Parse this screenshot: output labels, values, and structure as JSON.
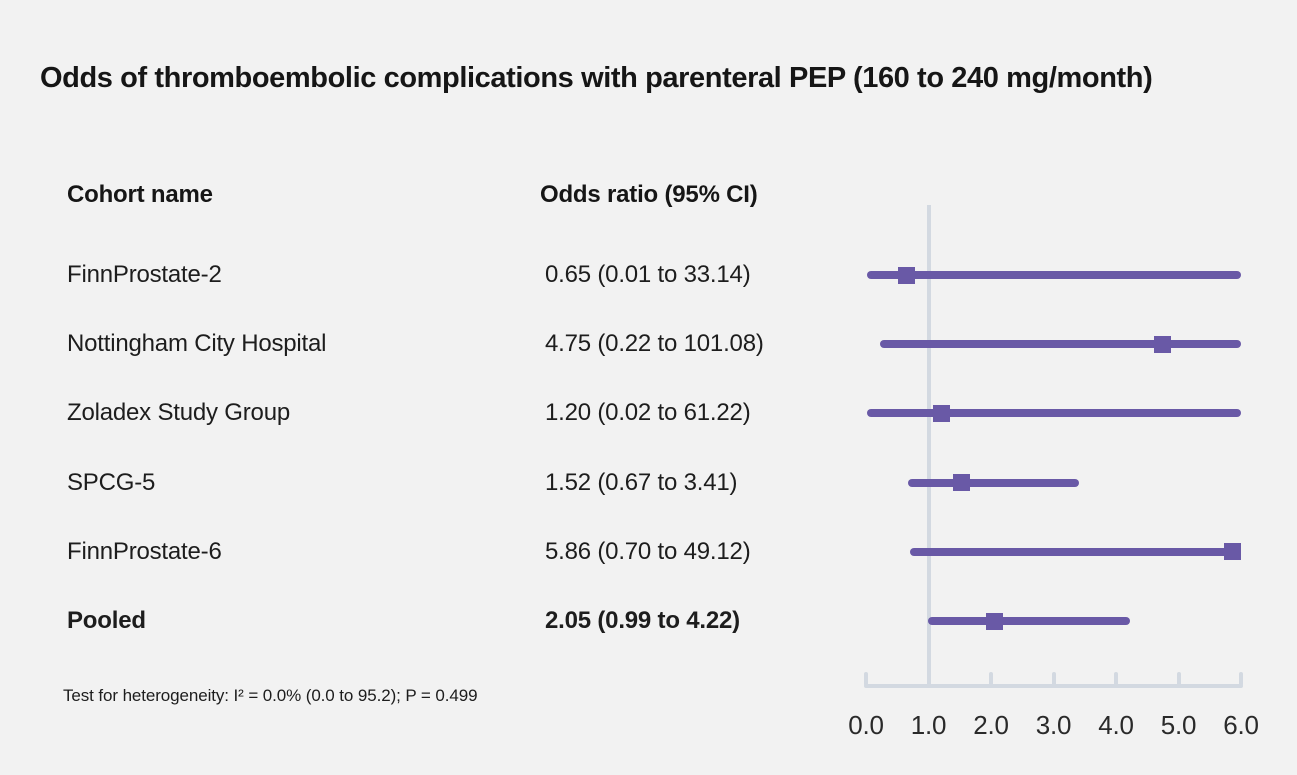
{
  "title": "Odds of thromboembolic complications with parenteral PEP (160 to 240 mg/month)",
  "columns": {
    "cohort": "Cohort name",
    "odds_ratio": "Odds ratio (95% CI)"
  },
  "footnote": "Test for heterogeneity: I² = 0.0% (0.0 to 95.2); P = 0.499",
  "colors": {
    "series": "#6959a6",
    "axis": "#d3d9e1",
    "background": "#f2f2f2",
    "text": "#1d1d1d"
  },
  "chart_data": {
    "type": "scatter",
    "subtype": "forest-plot",
    "title": "Odds of thromboembolic complications with parenteral PEP (160 to 240 mg/month)",
    "xlabel": "",
    "ylabel": "",
    "xlim": [
      0.0,
      6.0
    ],
    "x_ticks": [
      0.0,
      1.0,
      2.0,
      3.0,
      4.0,
      5.0,
      6.0
    ],
    "x_tick_labels": [
      "0.0",
      "1.0",
      "2.0",
      "3.0",
      "4.0",
      "5.0",
      "6.0"
    ],
    "reference_line_x": 1.0,
    "grid": false,
    "legend": false,
    "rows": [
      {
        "cohort": "FinnProstate-2",
        "or_text": "0.65 (0.01 to 33.14)",
        "or": 0.65,
        "ci_low": 0.01,
        "ci_high": 33.14,
        "bold": false
      },
      {
        "cohort": "Nottingham City Hospital",
        "or_text": "4.75 (0.22 to 101.08)",
        "or": 4.75,
        "ci_low": 0.22,
        "ci_high": 101.08,
        "bold": false
      },
      {
        "cohort": "Zoladex Study Group",
        "or_text": "1.20 (0.02 to 61.22)",
        "or": 1.2,
        "ci_low": 0.02,
        "ci_high": 61.22,
        "bold": false
      },
      {
        "cohort": "SPCG-5",
        "or_text": "1.52 (0.67 to 3.41)",
        "or": 1.52,
        "ci_low": 0.67,
        "ci_high": 3.41,
        "bold": false
      },
      {
        "cohort": "FinnProstate-6",
        "or_text": "5.86 (0.70 to 49.12)",
        "or": 5.86,
        "ci_low": 0.7,
        "ci_high": 49.12,
        "bold": false
      },
      {
        "cohort": "Pooled",
        "or_text": "2.05 (0.99 to 4.22)",
        "or": 2.05,
        "ci_low": 0.99,
        "ci_high": 4.22,
        "bold": true
      }
    ]
  }
}
